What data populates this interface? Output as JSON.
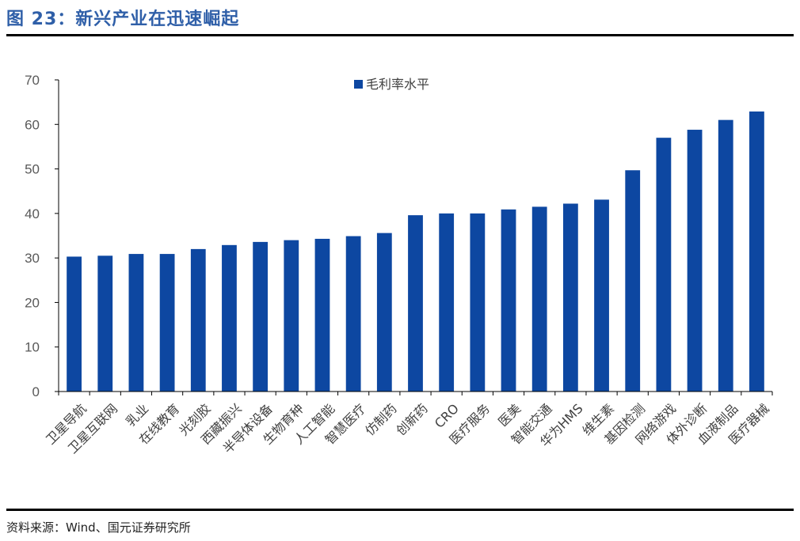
{
  "figure": {
    "title": "图 23：新兴产业在迅速崛起",
    "source": "资料来源：Wind、国元证券研究所"
  },
  "colors": {
    "title": "#2f5fa8",
    "bar": "#0d47a1",
    "axis": "#000000",
    "tick_text": "#595959"
  },
  "chart_data": {
    "type": "bar",
    "title": "",
    "xlabel": "",
    "ylabel": "",
    "ylim": [
      0,
      70
    ],
    "yticks": [
      0,
      10,
      20,
      30,
      40,
      50,
      60,
      70
    ],
    "grid": false,
    "legend_position": "top-center",
    "categories": [
      "卫星导航",
      "卫星互联网",
      "乳业",
      "在线教育",
      "光刻胶",
      "西藏振兴",
      "半导体设备",
      "生物育种",
      "人工智能",
      "智慧医疗",
      "仿制药",
      "创新药",
      "CRO",
      "医疗服务",
      "医美",
      "智能交通",
      "华为HMS",
      "维生素",
      "基因检测",
      "网络游戏",
      "体外诊断",
      "血液制品",
      "医疗器械"
    ],
    "series": [
      {
        "name": "毛利率水平",
        "values": [
          30.3,
          30.5,
          30.9,
          30.9,
          32.0,
          32.9,
          33.6,
          34.0,
          34.3,
          34.9,
          35.6,
          39.6,
          40.0,
          40.0,
          40.9,
          41.5,
          42.2,
          43.1,
          49.7,
          57.0,
          58.8,
          61.0,
          62.9
        ]
      }
    ]
  }
}
